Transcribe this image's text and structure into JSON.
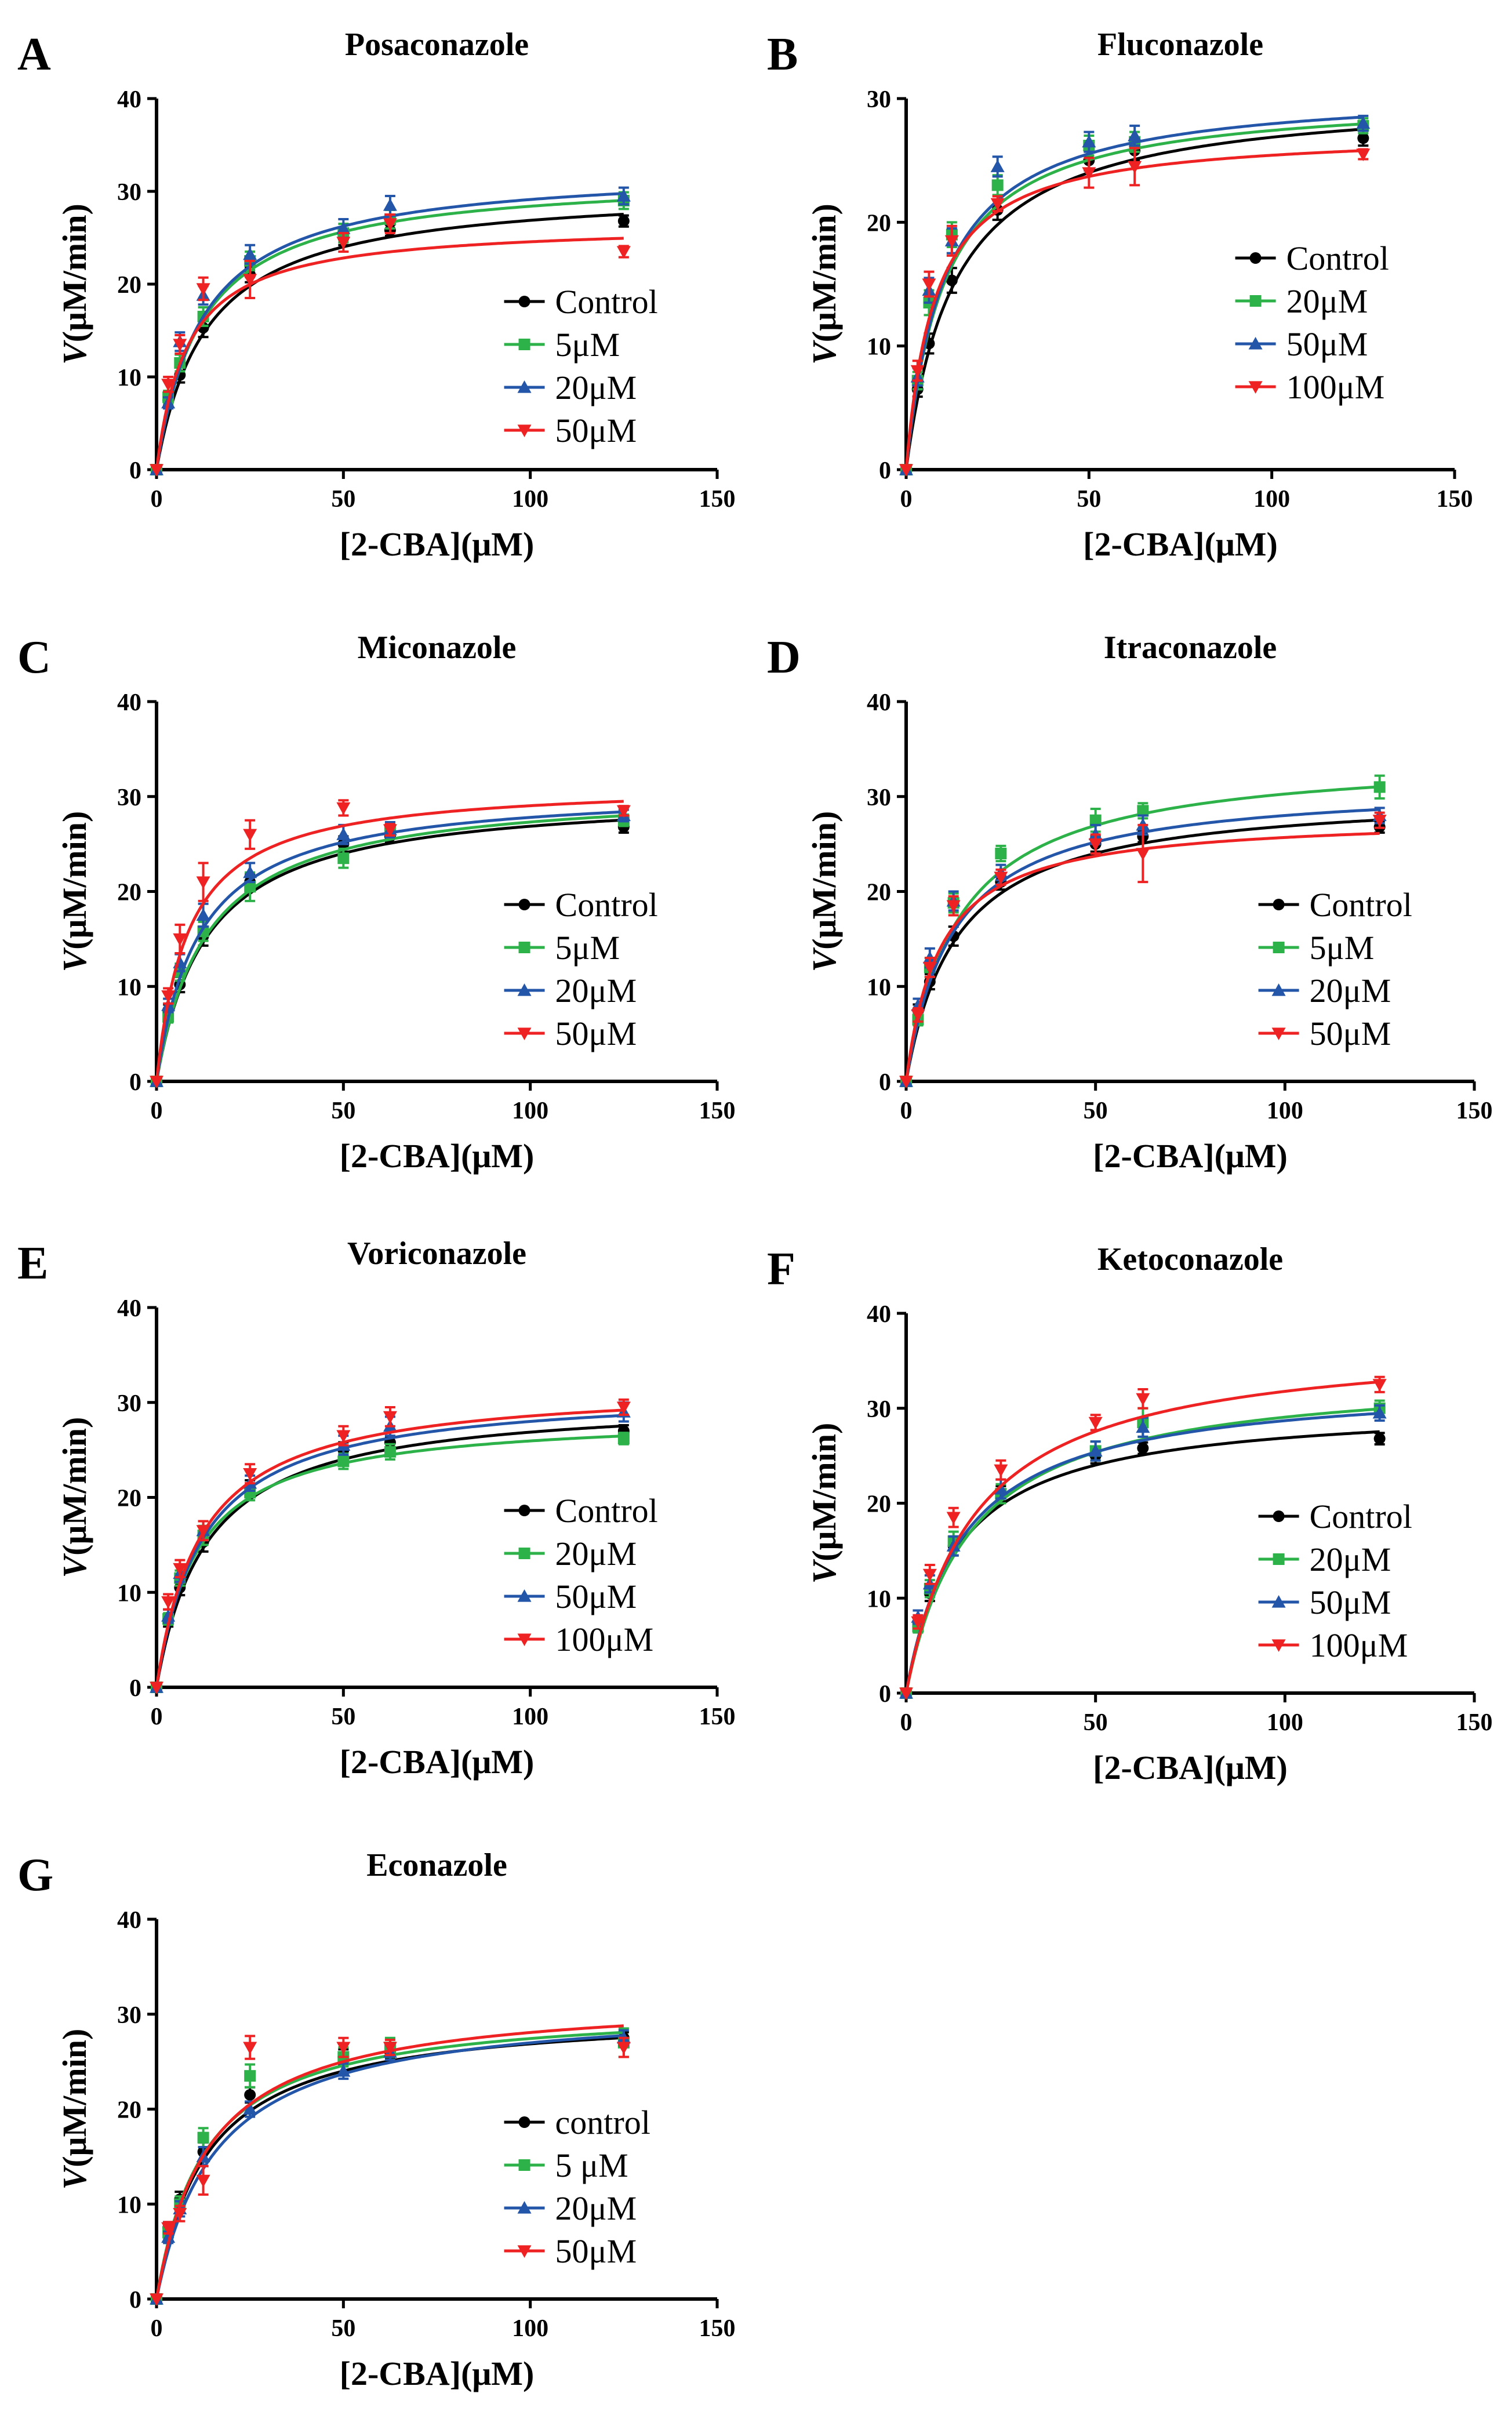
{
  "figure": {
    "x_label": "[2-CBA](μM)",
    "y_label_italic": "V",
    "y_label_rest": "(μM/min)",
    "colors": {
      "Control": "#000000",
      "c1": "#2db24a",
      "c2": "#2355a8",
      "c3": "#ee2222"
    }
  },
  "chart_data": [
    {
      "type": "line",
      "panel": "A",
      "title": "Posaconazole",
      "xlim": [
        0,
        150
      ],
      "ylim": [
        0,
        40
      ],
      "x_ticks": [
        0,
        50,
        100,
        150
      ],
      "y_ticks": [
        0,
        10,
        20,
        30,
        40
      ],
      "legend_position": "bottom-right",
      "legend_first_color_key": "Control",
      "legend": [
        "Control",
        "5μM",
        "20μM",
        "50μM"
      ],
      "x": [
        0,
        3.125,
        6.25,
        12.5,
        25,
        50,
        62.5,
        125
      ],
      "series": [
        {
          "name": "Control",
          "marker": "circle",
          "color": "#000000",
          "vmax": 30.5,
          "km": 13.5,
          "values": [
            0,
            7.5,
            10.2,
            15.3,
            21.0,
            25.0,
            25.8,
            26.8
          ],
          "errors": [
            0,
            0.6,
            0.8,
            1.0,
            0.8,
            0.8,
            0.6,
            0.6
          ]
        },
        {
          "name": "5μM",
          "marker": "square",
          "color": "#2db24a",
          "vmax": 31.8,
          "km": 12.0,
          "values": [
            0,
            7.8,
            11.5,
            16.5,
            22.5,
            25.5,
            27.0,
            29.0
          ],
          "errors": [
            0,
            0.7,
            0.9,
            1.0,
            1.0,
            1.0,
            1.0,
            0.9
          ]
        },
        {
          "name": "20μM",
          "marker": "triangle-up",
          "color": "#2355a8",
          "vmax": 32.7,
          "km": 12.3,
          "values": [
            0,
            7.2,
            13.8,
            18.8,
            23.2,
            26.0,
            28.5,
            29.5
          ],
          "errors": [
            0,
            0.6,
            1.0,
            1.0,
            1.0,
            1.0,
            1.0,
            0.9
          ]
        },
        {
          "name": "50μM",
          "marker": "triangle-down",
          "color": "#ee2222",
          "vmax": 26.6,
          "km": 8.3,
          "values": [
            0,
            9.2,
            13.5,
            19.5,
            20.5,
            24.5,
            26.5,
            23.5
          ],
          "errors": [
            0,
            0.8,
            1.0,
            1.2,
            2.0,
            1.0,
            1.0,
            0.6
          ]
        }
      ]
    },
    {
      "type": "line",
      "panel": "B",
      "title": "Fluconazole",
      "xlim": [
        0,
        150
      ],
      "ylim": [
        0,
        30
      ],
      "x_ticks": [
        0,
        50,
        100,
        150
      ],
      "y_ticks": [
        0,
        10,
        20,
        30
      ],
      "legend_position": "center-right",
      "legend_first_color_key": "Control",
      "legend": [
        "Control",
        "20μM",
        "50μM",
        "100μM"
      ],
      "x": [
        0,
        3.125,
        6.25,
        12.5,
        25,
        50,
        62.5,
        125
      ],
      "series": [
        {
          "name": "Control",
          "marker": "circle",
          "color": "#000000",
          "vmax": 30.5,
          "km": 13.5,
          "values": [
            0,
            6.5,
            10.2,
            15.3,
            21.0,
            25.0,
            25.8,
            26.8
          ],
          "errors": [
            0,
            0.6,
            0.8,
            1.0,
            0.8,
            0.8,
            0.8,
            0.6
          ]
        },
        {
          "name": "20μM",
          "marker": "square",
          "color": "#2db24a",
          "vmax": 30.3,
          "km": 10.5,
          "values": [
            0,
            7.2,
            13.5,
            19.0,
            23.0,
            26.2,
            26.5,
            27.8
          ],
          "errors": [
            0,
            0.7,
            1.0,
            1.0,
            0.8,
            0.8,
            0.8,
            0.6
          ]
        },
        {
          "name": "50μM",
          "marker": "triangle-up",
          "color": "#2355a8",
          "vmax": 30.9,
          "km": 10.5,
          "values": [
            0,
            7.5,
            14.5,
            18.5,
            24.5,
            26.5,
            27.0,
            28.0
          ],
          "errors": [
            0,
            0.7,
            1.0,
            1.0,
            0.8,
            0.8,
            0.8,
            0.6
          ]
        },
        {
          "name": "100μM",
          "marker": "triangle-down",
          "color": "#ee2222",
          "vmax": 27.4,
          "km": 7.8,
          "values": [
            0,
            8.0,
            15.0,
            18.5,
            21.5,
            24.0,
            24.5,
            25.5
          ],
          "errors": [
            0,
            0.8,
            1.0,
            1.2,
            0.6,
            1.2,
            1.5,
            0.4
          ]
        }
      ]
    },
    {
      "type": "line",
      "panel": "C",
      "title": "Miconazole",
      "xlim": [
        0,
        150
      ],
      "ylim": [
        0,
        40
      ],
      "x_ticks": [
        0,
        50,
        100,
        150
      ],
      "y_ticks": [
        0,
        10,
        20,
        30,
        40
      ],
      "legend_position": "bottom-right",
      "legend_first_color_key": "Control",
      "legend": [
        "Control",
        "5μM",
        "20μM",
        "50μM"
      ],
      "x": [
        0,
        3.125,
        6.25,
        12.5,
        25,
        50,
        62.5,
        125
      ],
      "series": [
        {
          "name": "Control",
          "marker": "circle",
          "color": "#000000",
          "vmax": 30.5,
          "km": 13.5,
          "values": [
            0,
            7.5,
            10.2,
            15.3,
            21.0,
            25.0,
            25.8,
            26.8
          ],
          "errors": [
            0,
            0.6,
            0.8,
            1.0,
            0.8,
            0.8,
            0.6,
            0.6
          ]
        },
        {
          "name": "5μM",
          "marker": "square",
          "color": "#2db24a",
          "vmax": 31.0,
          "km": 13.5,
          "values": [
            0,
            6.8,
            11.5,
            15.8,
            20.5,
            23.5,
            26.5,
            27.5
          ],
          "errors": [
            0,
            0.6,
            0.9,
            1.0,
            1.5,
            1.0,
            0.8,
            0.6
          ]
        },
        {
          "name": "20μM",
          "marker": "triangle-up",
          "color": "#2355a8",
          "vmax": 31.0,
          "km": 11.5,
          "values": [
            0,
            8.0,
            12.5,
            17.5,
            22.0,
            26.0,
            26.5,
            28.0
          ],
          "errors": [
            0,
            0.7,
            0.9,
            1.2,
            1.0,
            1.0,
            0.8,
            0.6
          ]
        },
        {
          "name": "50μM",
          "marker": "triangle-down",
          "color": "#ee2222",
          "vmax": 31.5,
          "km": 8.5,
          "values": [
            0,
            9.0,
            15.0,
            21.0,
            26.0,
            28.8,
            26.5,
            28.5
          ],
          "errors": [
            0,
            0.8,
            1.5,
            2.0,
            1.5,
            0.8,
            0.6,
            0.5
          ]
        }
      ]
    },
    {
      "type": "line",
      "panel": "D",
      "title": "Itraconazole",
      "xlim": [
        0,
        150
      ],
      "ylim": [
        0,
        40
      ],
      "x_ticks": [
        0,
        50,
        100,
        150
      ],
      "y_ticks": [
        0,
        10,
        20,
        30,
        40
      ],
      "legend_position": "bottom-right",
      "legend_first_color_key": "Control",
      "legend": [
        "Control",
        "5μM",
        "20μM",
        "50μM"
      ],
      "x": [
        0,
        3.125,
        6.25,
        12.5,
        25,
        50,
        62.5,
        125
      ],
      "series": [
        {
          "name": "Control",
          "marker": "circle",
          "color": "#000000",
          "vmax": 30.5,
          "km": 13.5,
          "values": [
            0,
            7.5,
            10.5,
            15.3,
            21.0,
            25.0,
            25.8,
            26.8
          ],
          "errors": [
            0,
            0.6,
            0.8,
            1.0,
            0.8,
            0.8,
            0.6,
            0.6
          ]
        },
        {
          "name": "5μM",
          "marker": "square",
          "color": "#2db24a",
          "vmax": 34.5,
          "km": 14.0,
          "values": [
            0,
            6.5,
            12.0,
            18.8,
            24.0,
            27.5,
            28.5,
            31.0
          ],
          "errors": [
            0,
            0.6,
            1.0,
            1.0,
            0.8,
            1.2,
            0.8,
            1.2
          ]
        },
        {
          "name": "20μM",
          "marker": "triangle-up",
          "color": "#2355a8",
          "vmax": 31.5,
          "km": 12.5,
          "values": [
            0,
            8.0,
            13.0,
            19.0,
            22.0,
            26.0,
            27.0,
            28.0
          ],
          "errors": [
            0,
            0.7,
            1.0,
            1.0,
            0.8,
            1.0,
            1.0,
            0.8
          ]
        },
        {
          "name": "50μM",
          "marker": "triangle-down",
          "color": "#ee2222",
          "vmax": 28.0,
          "km": 9.0,
          "values": [
            0,
            7.0,
            12.0,
            18.5,
            21.5,
            25.0,
            24.0,
            27.5
          ],
          "errors": [
            0,
            0.7,
            1.0,
            1.0,
            0.8,
            1.0,
            3.0,
            0.8
          ]
        }
      ]
    },
    {
      "type": "line",
      "panel": "E",
      "title": "Voriconazole",
      "xlim": [
        0,
        150
      ],
      "ylim": [
        0,
        40
      ],
      "x_ticks": [
        0,
        50,
        100,
        150
      ],
      "y_ticks": [
        0,
        10,
        20,
        30,
        40
      ],
      "legend_position": "bottom-right",
      "legend_first_color_key": "Control",
      "legend": [
        "Control",
        "20μM",
        "50μM",
        "100μM"
      ],
      "x": [
        0,
        3.125,
        6.25,
        12.5,
        25,
        50,
        62.5,
        125
      ],
      "series": [
        {
          "name": "Control",
          "marker": "circle",
          "color": "#000000",
          "vmax": 30.5,
          "km": 13.5,
          "values": [
            0,
            7.0,
            10.5,
            15.3,
            21.0,
            25.0,
            25.8,
            27.0
          ],
          "errors": [
            0,
            0.6,
            0.8,
            1.0,
            0.8,
            0.8,
            0.6,
            0.6
          ]
        },
        {
          "name": "20μM",
          "marker": "square",
          "color": "#2db24a",
          "vmax": 28.8,
          "km": 11.0,
          "values": [
            0,
            7.2,
            11.5,
            16.0,
            20.5,
            23.8,
            24.8,
            26.2
          ],
          "errors": [
            0,
            0.6,
            0.8,
            1.0,
            0.8,
            0.8,
            0.8,
            0.6
          ]
        },
        {
          "name": "50μM",
          "marker": "triangle-up",
          "color": "#2355a8",
          "vmax": 31.5,
          "km": 12.5,
          "values": [
            0,
            7.5,
            12.0,
            16.5,
            21.5,
            25.5,
            27.5,
            29.0
          ],
          "errors": [
            0,
            0.7,
            0.9,
            1.0,
            0.8,
            1.0,
            1.0,
            1.0
          ]
        },
        {
          "name": "100μM",
          "marker": "triangle-down",
          "color": "#ee2222",
          "vmax": 32.0,
          "km": 12.0,
          "values": [
            0,
            9.0,
            12.5,
            16.5,
            22.5,
            26.5,
            28.5,
            29.5
          ],
          "errors": [
            0,
            0.8,
            0.9,
            1.0,
            1.0,
            1.0,
            1.0,
            0.8
          ]
        }
      ]
    },
    {
      "type": "line",
      "panel": "F",
      "title": "Ketoconazole",
      "xlim": [
        0,
        150
      ],
      "ylim": [
        0,
        40
      ],
      "x_ticks": [
        0,
        50,
        100,
        150
      ],
      "y_ticks": [
        0,
        10,
        20,
        30,
        40
      ],
      "legend_position": "bottom-right",
      "legend_first_color_key": "Control",
      "legend": [
        "Control",
        "20μM",
        "50μM",
        "100μM"
      ],
      "x": [
        0,
        3.125,
        6.25,
        12.5,
        25,
        50,
        62.5,
        125
      ],
      "series": [
        {
          "name": "Control",
          "marker": "circle",
          "color": "#000000",
          "vmax": 30.5,
          "km": 13.5,
          "values": [
            0,
            7.0,
            10.5,
            15.5,
            21.0,
            25.0,
            25.8,
            26.8
          ],
          "errors": [
            0,
            0.6,
            0.8,
            1.0,
            0.8,
            0.8,
            0.6,
            0.6
          ]
        },
        {
          "name": "20μM",
          "marker": "square",
          "color": "#2db24a",
          "vmax": 34.0,
          "km": 17.0,
          "values": [
            0,
            7.0,
            11.0,
            16.0,
            21.0,
            25.5,
            28.5,
            30.0
          ],
          "errors": [
            0,
            0.6,
            0.9,
            1.0,
            1.0,
            1.0,
            1.5,
            0.8
          ]
        },
        {
          "name": "50μM",
          "marker": "triangle-up",
          "color": "#2355a8",
          "vmax": 33.0,
          "km": 15.0,
          "values": [
            0,
            8.0,
            11.5,
            15.5,
            21.5,
            25.5,
            28.0,
            29.5
          ],
          "errors": [
            0,
            0.7,
            0.9,
            1.0,
            1.0,
            1.0,
            1.0,
            0.8
          ]
        },
        {
          "name": "100μM",
          "marker": "triangle-down",
          "color": "#ee2222",
          "vmax": 37.5,
          "km": 18.0,
          "values": [
            0,
            7.5,
            12.5,
            18.5,
            23.5,
            28.5,
            31.0,
            32.5
          ],
          "errors": [
            0,
            0.7,
            1.0,
            1.0,
            1.0,
            0.8,
            1.0,
            0.8
          ]
        }
      ]
    },
    {
      "type": "line",
      "panel": "G",
      "title": "Econazole",
      "xlim": [
        0,
        150
      ],
      "ylim": [
        0,
        40
      ],
      "x_ticks": [
        0,
        50,
        100,
        150
      ],
      "y_ticks": [
        0,
        10,
        20,
        30,
        40
      ],
      "legend_position": "bottom-right",
      "legend_first_color_key": "Control",
      "legend": [
        "control",
        "5 μM",
        "20μM",
        "50μM"
      ],
      "x": [
        0,
        3.125,
        6.25,
        12.5,
        25,
        50,
        62.5,
        125
      ],
      "series": [
        {
          "name": "control",
          "marker": "circle",
          "color": "#000000",
          "vmax": 30.5,
          "km": 13.5,
          "values": [
            0,
            7.5,
            10.5,
            15.5,
            21.5,
            25.5,
            26.0,
            27.5
          ],
          "errors": [
            0,
            0.6,
            0.8,
            1.0,
            0.8,
            0.8,
            0.6,
            0.6
          ]
        },
        {
          "name": "5 μM",
          "marker": "square",
          "color": "#2db24a",
          "vmax": 31.0,
          "km": 13.0,
          "values": [
            0,
            7.0,
            10.0,
            17.0,
            23.5,
            25.5,
            26.5,
            27.0
          ],
          "errors": [
            0,
            0.6,
            0.8,
            1.0,
            1.2,
            1.0,
            1.0,
            1.5
          ]
        },
        {
          "name": "20μM",
          "marker": "triangle-up",
          "color": "#2355a8",
          "vmax": 31.3,
          "km": 16.0,
          "values": [
            0,
            6.5,
            9.5,
            15.0,
            20.0,
            24.0,
            26.0,
            27.5
          ],
          "errors": [
            0,
            0.6,
            0.8,
            1.0,
            0.8,
            0.8,
            0.8,
            0.8
          ]
        },
        {
          "name": "50μM",
          "marker": "triangle-down",
          "color": "#ee2222",
          "vmax": 32.0,
          "km": 14.0,
          "values": [
            0,
            7.5,
            9.0,
            12.5,
            26.5,
            26.5,
            26.5,
            26.5
          ],
          "errors": [
            0,
            0.6,
            0.8,
            1.5,
            1.2,
            1.0,
            0.8,
            1.0
          ]
        }
      ]
    }
  ]
}
